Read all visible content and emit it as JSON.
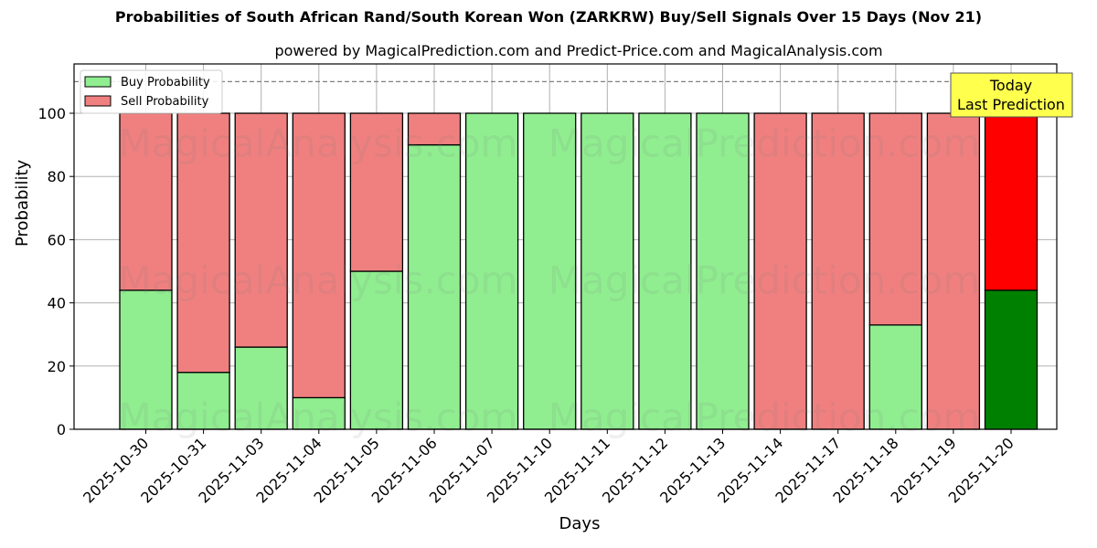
{
  "header": {
    "title": "Probabilities of South African Rand/South Korean Won (ZARKRW) Buy/Sell Signals Over 15 Days (Nov 21)",
    "subtitle": "powered by MagicalPrediction.com and Predict-Price.com and MagicalAnalysis.com"
  },
  "legend": {
    "buy_label": "Buy Probability",
    "sell_label": "Sell Probability"
  },
  "annotation": {
    "line1": "Today",
    "line2": "Last Prediction"
  },
  "watermarks": [
    "MagicalAnalysis.com",
    "MagicalPrediction.com"
  ],
  "colors": {
    "buy": "#90ee90",
    "sell": "#f08080",
    "today_buy": "#008000",
    "today_sell": "#ff0000",
    "annotation_bg": "#ffff4d"
  },
  "chart_data": {
    "type": "bar",
    "stacked": true,
    "title": "Probabilities of South African Rand/South Korean Won (ZARKRW) Buy/Sell Signals Over 15 Days (Nov 21)",
    "subtitle": "powered by MagicalPrediction.com and Predict-Price.com and MagicalAnalysis.com",
    "xlabel": "Days",
    "ylabel": "Probability",
    "ylim": [
      0,
      115
    ],
    "yticks": [
      0,
      20,
      40,
      60,
      80,
      100
    ],
    "reference_line": 110,
    "grid": true,
    "legend_position": "upper left",
    "categories": [
      "2025-10-30",
      "2025-10-31",
      "2025-11-03",
      "2025-11-04",
      "2025-11-05",
      "2025-11-06",
      "2025-11-07",
      "2025-11-10",
      "2025-11-11",
      "2025-11-12",
      "2025-11-13",
      "2025-11-14",
      "2025-11-17",
      "2025-11-18",
      "2025-11-19",
      "2025-11-20"
    ],
    "series": [
      {
        "name": "Buy Probability",
        "values": [
          44,
          18,
          26,
          10,
          50,
          90,
          100,
          100,
          100,
          100,
          100,
          0,
          0,
          33,
          0,
          44
        ]
      },
      {
        "name": "Sell Probability",
        "values": [
          56,
          82,
          74,
          90,
          50,
          10,
          0,
          0,
          0,
          0,
          0,
          100,
          100,
          67,
          100,
          56
        ]
      }
    ],
    "annotations": [
      {
        "text": "Today\nLast Prediction",
        "category": "2025-11-20"
      }
    ]
  }
}
